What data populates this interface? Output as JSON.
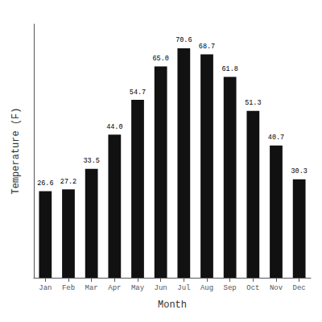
{
  "chart_data": {
    "type": "bar",
    "categories": [
      "Jan",
      "Feb",
      "Mar",
      "Apr",
      "May",
      "Jun",
      "Jul",
      "Aug",
      "Sep",
      "Oct",
      "Nov",
      "Dec"
    ],
    "values": [
      26.6,
      27.2,
      33.5,
      44.0,
      54.7,
      65.0,
      70.6,
      68.7,
      61.8,
      51.3,
      40.7,
      30.3
    ],
    "value_labels": [
      "26.6",
      "27.2",
      "33.5",
      "44.0",
      "54.7",
      "65.0",
      "70.6",
      "68.7",
      "61.8",
      "51.3",
      "40.7",
      "30.3"
    ],
    "color": "#111111",
    "xlabel": "Month",
    "ylabel": "Temperature (F)",
    "ylim": [
      0,
      78
    ],
    "grid": false,
    "data_labels": true,
    "tick_labels": "x"
  }
}
